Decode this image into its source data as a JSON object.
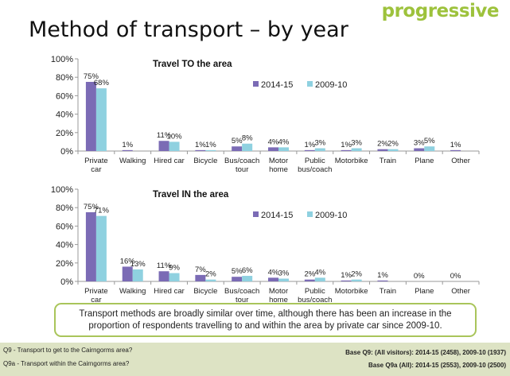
{
  "logo_text": "progressive",
  "slide_title": "Method of transport – by year",
  "summary": "Transport methods are broadly similar over time, although there has been an increase in the proportion of respondents travelling to and within the area by private car since 2009-10.",
  "footnotes": {
    "q9": "Q9 - Transport to get to the Cairngorms area?",
    "q9a": "Q9a - Transport within the Cairngorms area?",
    "base_q9": "Base Q9: (All visitors): 2014-15 (2458), 2009-10 (1937)",
    "base_q9a": "Base Q9a (All): 2014-15 (2553), 2009-10 (2500)"
  },
  "colors": {
    "series_2014": "#7b6bb5",
    "series_2009": "#8fd1e0",
    "brand": "#9dc23c"
  },
  "chart_data": [
    {
      "type": "bar",
      "title": "Travel TO the area",
      "categories": [
        "Private car",
        "Walking",
        "Hired car",
        "Bicycle",
        "Bus/coach tour",
        "Motor home",
        "Public bus/coach",
        "Motorbike",
        "Train",
        "Plane",
        "Other"
      ],
      "series": [
        {
          "name": "2014-15",
          "values": [
            75,
            1,
            11,
            1,
            5,
            4,
            1,
            1,
            2,
            3,
            1
          ]
        },
        {
          "name": "2009-10",
          "values": [
            68,
            null,
            10,
            1,
            8,
            4,
            3,
            3,
            2,
            5,
            null
          ]
        }
      ],
      "ylim": [
        0,
        100
      ],
      "yticks": [
        "0%",
        "20%",
        "40%",
        "60%",
        "80%",
        "100%"
      ],
      "value_suffix": "%",
      "legend": "top-right",
      "grid": false
    },
    {
      "type": "bar",
      "title": "Travel IN the area",
      "categories": [
        "Private car",
        "Walking",
        "Hired car",
        "Bicycle",
        "Bus/coach tour",
        "Motor home",
        "Public bus/coach",
        "Motorbike",
        "Train",
        "Plane",
        "Other"
      ],
      "series": [
        {
          "name": "2014-15",
          "values": [
            75,
            16,
            11,
            7,
            5,
            4,
            2,
            1,
            1,
            0,
            0
          ]
        },
        {
          "name": "2009-10",
          "values": [
            71,
            13,
            9,
            2,
            6,
            3,
            4,
            2,
            null,
            null,
            null
          ]
        }
      ],
      "ylim": [
        0,
        100
      ],
      "yticks": [
        "0%",
        "20%",
        "40%",
        "60%",
        "80%",
        "100%"
      ],
      "value_suffix": "%",
      "legend": "top-right",
      "grid": false
    }
  ]
}
